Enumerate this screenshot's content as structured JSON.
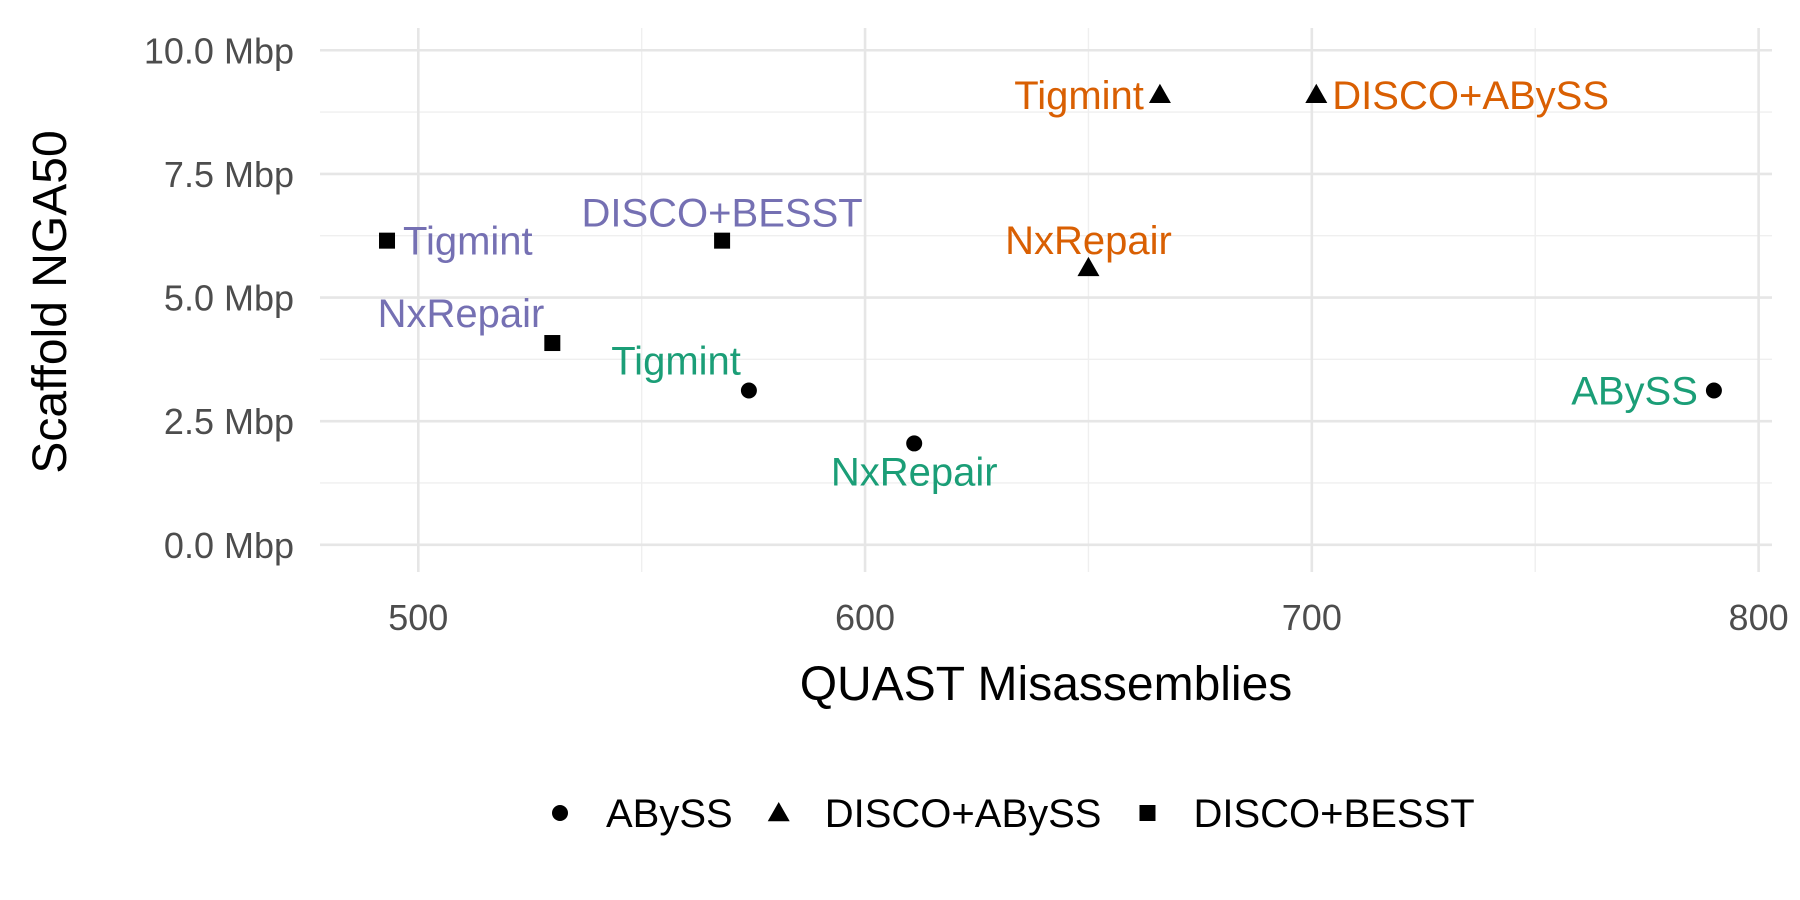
{
  "chart_data": {
    "type": "scatter",
    "xlabel": "QUAST Misassemblies",
    "ylabel": "Scaffold NGA50",
    "xlim": [
      478,
      803
    ],
    "ylim": [
      -0.55,
      10.45
    ],
    "x_ticks": [
      500,
      600,
      700,
      800
    ],
    "x_tick_labels": [
      "500",
      "600",
      "700",
      "800"
    ],
    "x_minor_ticks": [
      550,
      650,
      750
    ],
    "y_ticks": [
      0,
      2.5,
      5,
      7.5,
      10
    ],
    "y_tick_labels": [
      "0.0 Mbp",
      "2.5 Mbp",
      "5.0 Mbp",
      "7.5 Mbp",
      "10.0 Mbp"
    ],
    "y_minor_ticks": [
      1.25,
      3.75,
      6.25,
      8.75
    ],
    "y_unit": "Mbp",
    "grid": true,
    "legend_position": "bottom",
    "series": [
      {
        "name": "ABySS",
        "shape": "circle",
        "points": [
          {
            "x": 574,
            "y": 3.12,
            "label": "Tigmint",
            "color": "#1b9e77",
            "label_pos": "upper-left"
          },
          {
            "x": 611,
            "y": 2.05,
            "label": "NxRepair",
            "color": "#1b9e77",
            "label_pos": "below"
          },
          {
            "x": 790,
            "y": 3.12,
            "label": "ABySS",
            "color": "#1b9e77",
            "label_pos": "left"
          }
        ]
      },
      {
        "name": "DISCO+ABySS",
        "shape": "triangle",
        "points": [
          {
            "x": 666,
            "y": 9.1,
            "label": "Tigmint",
            "color": "#d95f02",
            "label_pos": "left"
          },
          {
            "x": 701,
            "y": 9.1,
            "label": "DISCO+ABySS",
            "color": "#d95f02",
            "label_pos": "right"
          },
          {
            "x": 650,
            "y": 5.6,
            "label": "NxRepair",
            "color": "#d95f02",
            "label_pos": "above"
          }
        ]
      },
      {
        "name": "DISCO+BESST",
        "shape": "square",
        "points": [
          {
            "x": 493,
            "y": 6.15,
            "label": "Tigmint",
            "color": "#7570b3",
            "label_pos": "right"
          },
          {
            "x": 568,
            "y": 6.15,
            "label": "DISCO+BESST",
            "color": "#7570b3",
            "label_pos": "above"
          },
          {
            "x": 530,
            "y": 4.08,
            "label": "NxRepair",
            "color": "#7570b3",
            "label_pos": "upper-left"
          }
        ]
      }
    ]
  }
}
